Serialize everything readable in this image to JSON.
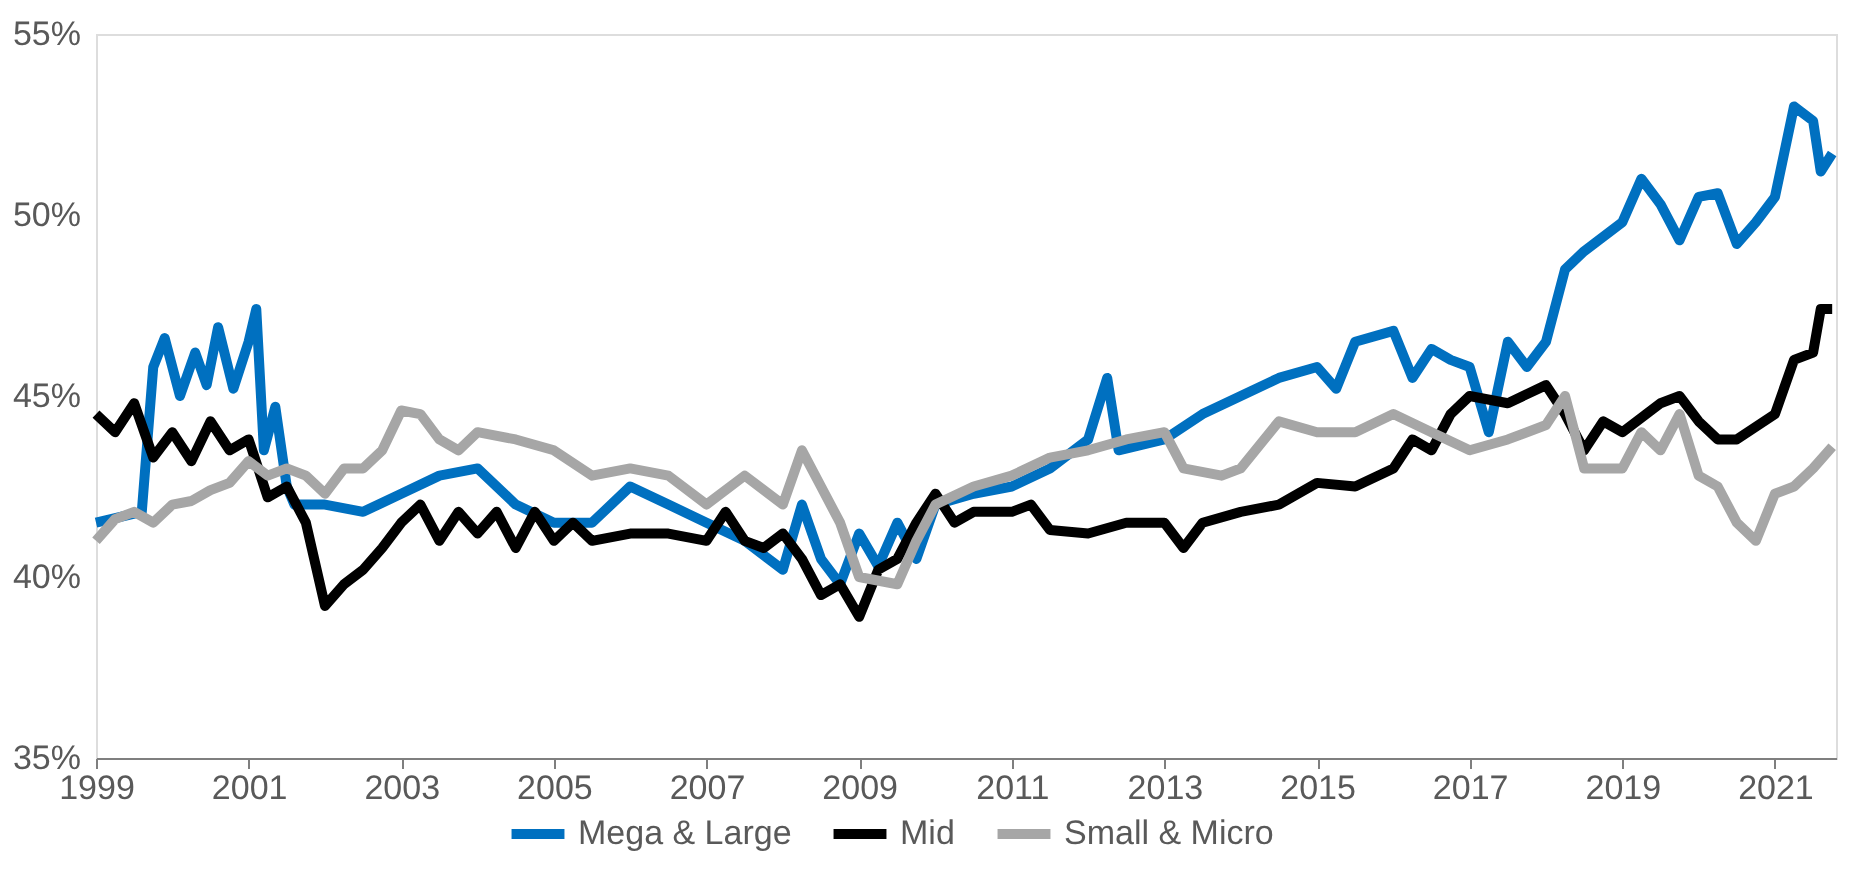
{
  "chart_data": {
    "type": "line",
    "xlim": [
      1999,
      2021.8
    ],
    "xticks": [
      1999,
      2001,
      2003,
      2005,
      2007,
      2009,
      2011,
      2013,
      2015,
      2017,
      2019,
      2021
    ],
    "ylim": [
      35,
      55
    ],
    "yticks": [
      {
        "value": 35,
        "label": "35%"
      },
      {
        "value": 40,
        "label": "40%"
      },
      {
        "value": 45,
        "label": "45%"
      },
      {
        "value": 50,
        "label": "50%"
      },
      {
        "value": 55,
        "label": "55%"
      }
    ],
    "grid": false,
    "legend": "bottom",
    "marker": "none",
    "line_style": "solid",
    "series": [
      {
        "name": "Mega & Large",
        "color": "#0070c0",
        "x": [
          1999.0,
          1999.6,
          1999.75,
          1999.9,
          2000.1,
          2000.3,
          2000.45,
          2000.6,
          2000.8,
          2001.0,
          2001.1,
          2001.2,
          2001.35,
          2001.5,
          2001.6,
          2002,
          2002.5,
          2003,
          2003.5,
          2004,
          2004.5,
          2005,
          2005.5,
          2006,
          2006.5,
          2007,
          2007.5,
          2008,
          2008.25,
          2008.5,
          2008.75,
          2009,
          2009.25,
          2009.5,
          2009.75,
          2010,
          2010.5,
          2011,
          2011.5,
          2012,
          2012.25,
          2012.4,
          2013,
          2013.5,
          2014,
          2014.5,
          2015,
          2015.25,
          2015.5,
          2016,
          2016.25,
          2016.5,
          2016.75,
          2017,
          2017.25,
          2017.5,
          2017.75,
          2018,
          2018.25,
          2018.5,
          2019,
          2019.25,
          2019.5,
          2019.75,
          2020,
          2020.25,
          2020.5,
          2020.75,
          2021,
          2021.25,
          2021.5,
          2021.6,
          2021.75
        ],
        "values": [
          41.5,
          41.8,
          45.8,
          46.6,
          45.0,
          46.2,
          45.3,
          46.9,
          45.2,
          46.5,
          47.4,
          43.5,
          44.7,
          42.5,
          42.0,
          42.0,
          41.8,
          42.3,
          42.8,
          43.0,
          42.0,
          41.5,
          41.5,
          42.5,
          42.0,
          41.5,
          41.0,
          40.2,
          42.0,
          40.5,
          39.8,
          41.2,
          40.3,
          41.5,
          40.5,
          42.0,
          42.3,
          42.5,
          43.0,
          43.8,
          45.5,
          43.5,
          43.8,
          44.5,
          45.0,
          45.5,
          45.8,
          45.2,
          46.5,
          46.8,
          45.5,
          46.3,
          46.0,
          45.8,
          44.0,
          46.5,
          45.8,
          46.5,
          48.5,
          49.0,
          49.8,
          51.0,
          50.3,
          49.3,
          50.5,
          50.6,
          49.2,
          49.8,
          50.5,
          53.0,
          52.6,
          51.2,
          51.7
        ]
      },
      {
        "name": "Mid",
        "color": "#000000",
        "x": [
          1999.0,
          1999.25,
          1999.5,
          1999.75,
          2000,
          2000.25,
          2000.5,
          2000.75,
          2001,
          2001.25,
          2001.5,
          2001.75,
          2002,
          2002.25,
          2002.5,
          2002.75,
          2003,
          2003.25,
          2003.5,
          2003.75,
          2004,
          2004.25,
          2004.5,
          2004.75,
          2005,
          2005.25,
          2005.5,
          2006,
          2006.5,
          2007,
          2007.25,
          2007.5,
          2007.75,
          2008,
          2008.25,
          2008.5,
          2008.75,
          2009,
          2009.25,
          2009.5,
          2009.75,
          2010,
          2010.25,
          2010.5,
          2011,
          2011.25,
          2011.5,
          2012,
          2012.5,
          2013,
          2013.25,
          2013.5,
          2014,
          2014.5,
          2015,
          2015.5,
          2016,
          2016.25,
          2016.5,
          2016.75,
          2017,
          2017.5,
          2018,
          2018.25,
          2018.5,
          2018.75,
          2019,
          2019.5,
          2019.75,
          2020,
          2020.25,
          2020.5,
          2021,
          2021.25,
          2021.5,
          2021.6,
          2021.75
        ],
        "values": [
          44.5,
          44.0,
          44.8,
          43.3,
          44.0,
          43.2,
          44.3,
          43.5,
          43.8,
          42.2,
          42.5,
          41.5,
          39.2,
          39.8,
          40.2,
          40.8,
          41.5,
          42.0,
          41.0,
          41.8,
          41.2,
          41.8,
          40.8,
          41.8,
          41.0,
          41.5,
          41.0,
          41.2,
          41.2,
          41.0,
          41.8,
          41.0,
          40.8,
          41.2,
          40.5,
          39.5,
          39.8,
          38.9,
          40.2,
          40.5,
          41.5,
          42.3,
          41.5,
          41.8,
          41.8,
          42.0,
          41.3,
          41.2,
          41.5,
          41.5,
          40.8,
          41.5,
          41.8,
          42.0,
          42.6,
          42.5,
          43.0,
          43.8,
          43.5,
          44.5,
          45.0,
          44.8,
          45.3,
          44.5,
          43.5,
          44.3,
          44.0,
          44.8,
          45.0,
          44.3,
          43.8,
          43.8,
          44.5,
          46.0,
          46.2,
          47.4,
          47.4
        ]
      },
      {
        "name": "Small & Micro",
        "color": "#a6a6a6",
        "x": [
          1999.0,
          1999.25,
          1999.5,
          1999.75,
          2000,
          2000.25,
          2000.5,
          2000.75,
          2001,
          2001.25,
          2001.5,
          2001.75,
          2002,
          2002.25,
          2002.5,
          2002.75,
          2003,
          2003.25,
          2003.5,
          2003.75,
          2004,
          2004.5,
          2005,
          2005.5,
          2006,
          2006.5,
          2007,
          2007.5,
          2008,
          2008.25,
          2008.5,
          2008.75,
          2009,
          2009.5,
          2009.75,
          2010,
          2010.5,
          2011,
          2011.5,
          2012,
          2012.5,
          2013,
          2013.25,
          2013.75,
          2014,
          2014.5,
          2015,
          2015.5,
          2016,
          2016.5,
          2017,
          2017.5,
          2018,
          2018.25,
          2018.5,
          2019,
          2019.25,
          2019.5,
          2019.75,
          2020,
          2020.25,
          2020.5,
          2020.75,
          2021,
          2021.25,
          2021.5,
          2021.75
        ],
        "values": [
          41.0,
          41.6,
          41.8,
          41.5,
          42.0,
          42.1,
          42.4,
          42.6,
          43.2,
          42.8,
          43.0,
          42.8,
          42.3,
          43.0,
          43.0,
          43.5,
          44.6,
          44.5,
          43.8,
          43.5,
          44.0,
          43.8,
          43.5,
          42.8,
          43.0,
          42.8,
          42.0,
          42.8,
          42.0,
          43.5,
          42.5,
          41.5,
          40.0,
          39.8,
          41.0,
          42.0,
          42.5,
          42.8,
          43.3,
          43.5,
          43.8,
          44.0,
          43.0,
          42.8,
          43.0,
          44.3,
          44.0,
          44.0,
          44.5,
          44.0,
          43.5,
          43.8,
          44.2,
          45.0,
          43.0,
          43.0,
          44.0,
          43.5,
          44.5,
          42.8,
          42.5,
          41.5,
          41.0,
          42.3,
          42.5,
          43.0,
          43.6
        ]
      }
    ]
  }
}
